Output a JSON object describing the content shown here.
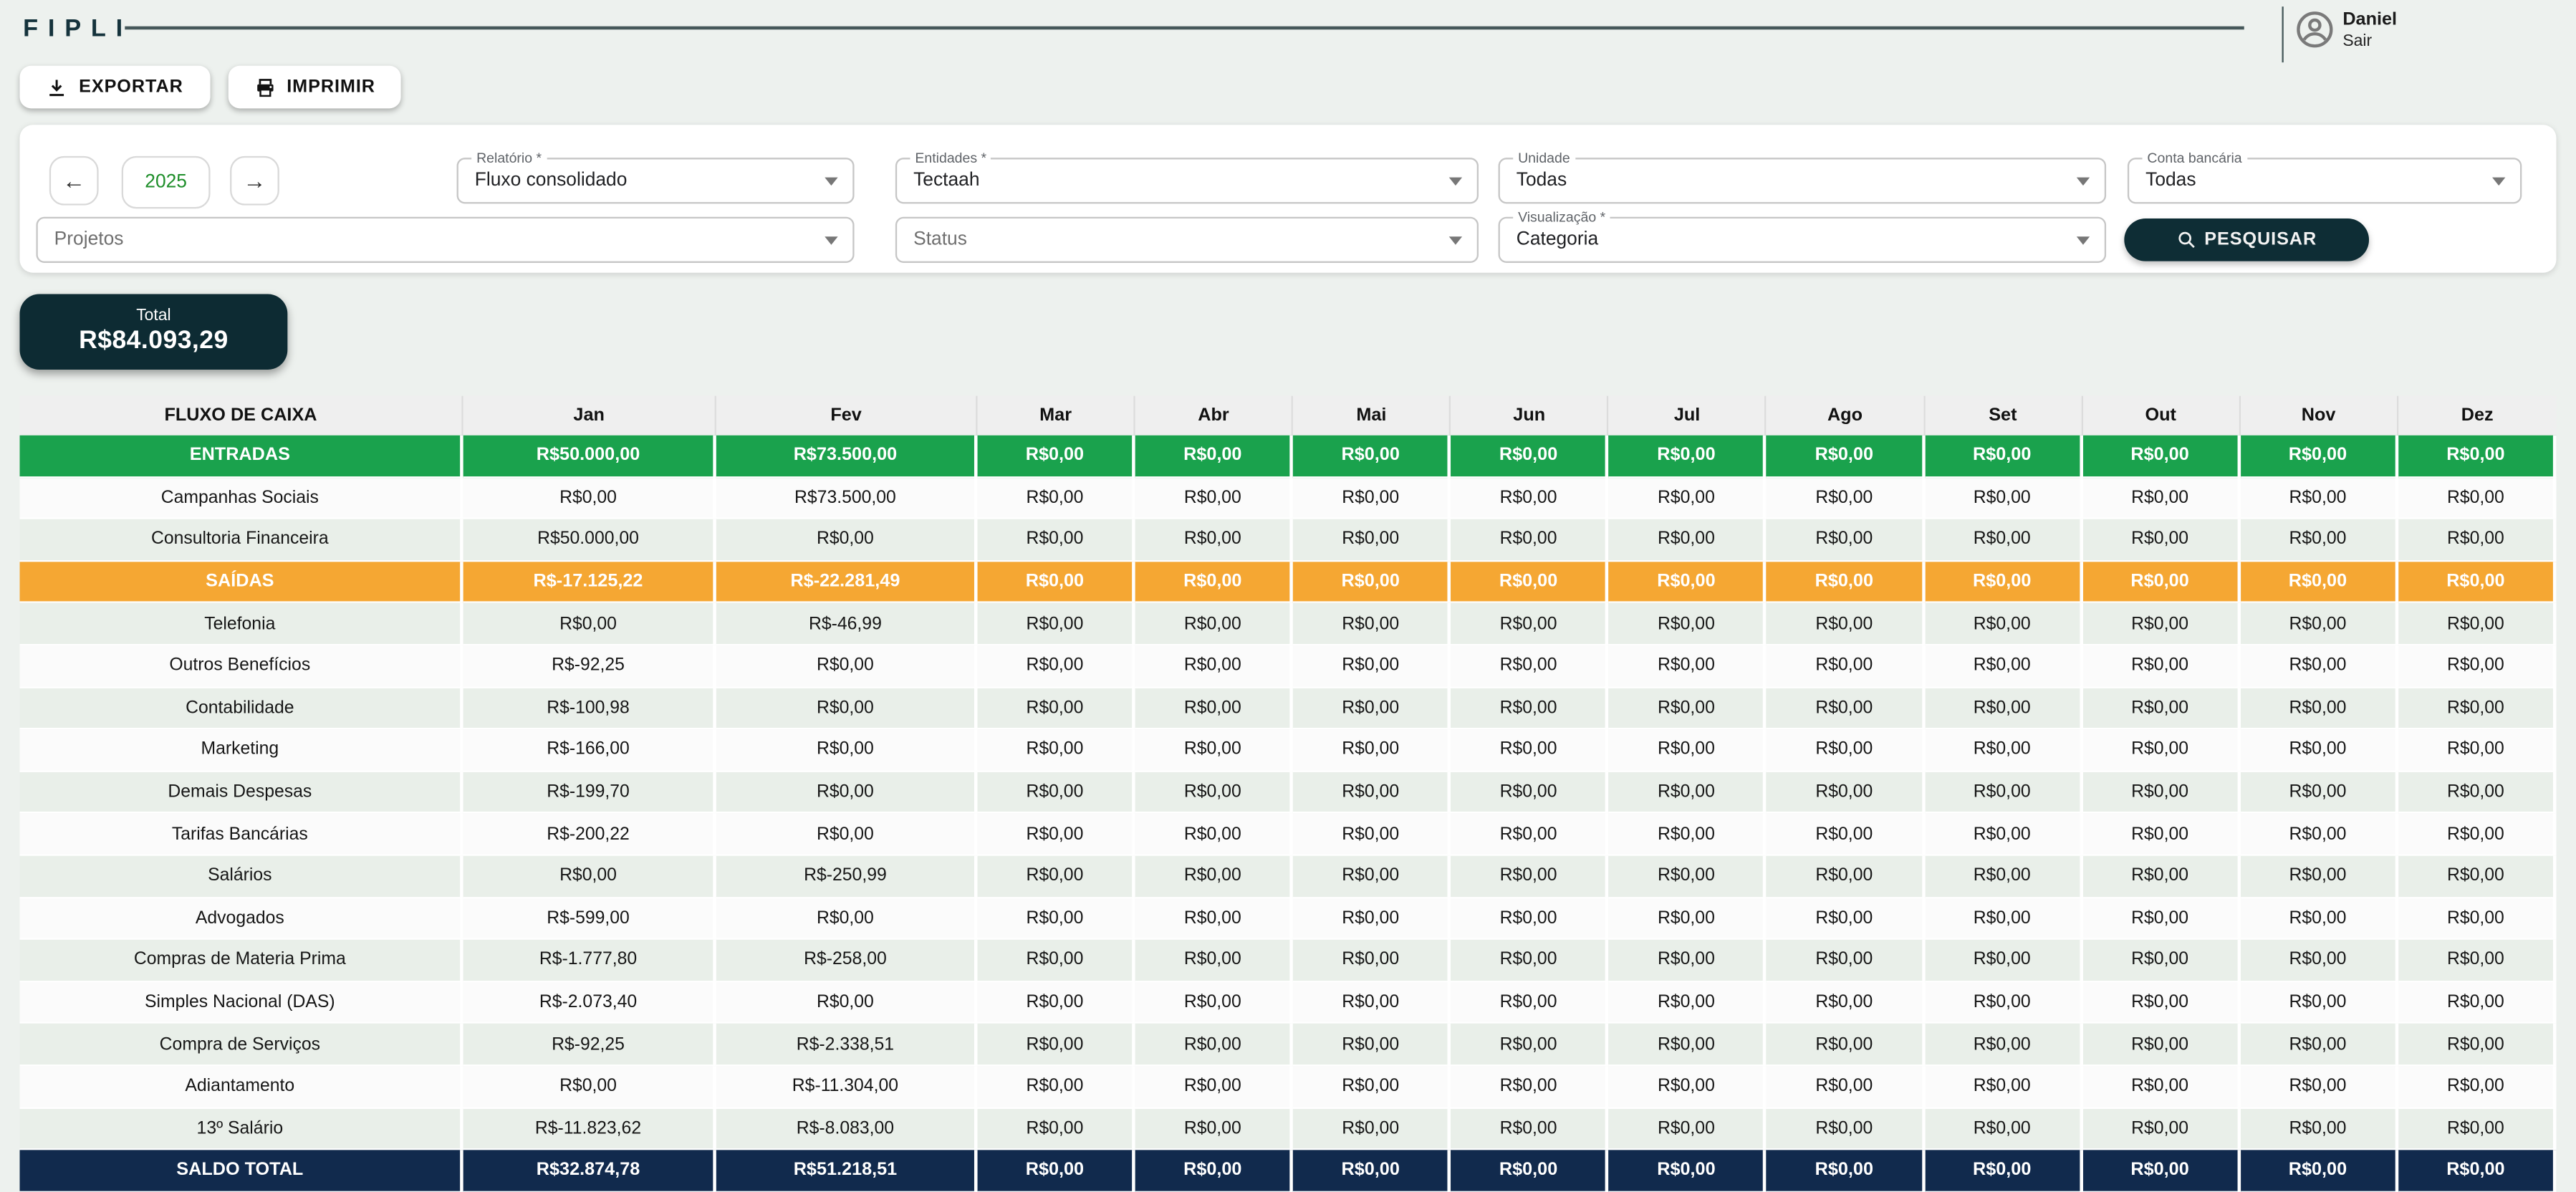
{
  "header": {
    "logo": "FIPLI",
    "user": {
      "name": "Daniel",
      "action": "Sair"
    }
  },
  "toolbar": {
    "export_label": "EXPORTAR",
    "print_label": "IMPRIMIR"
  },
  "filters": {
    "year": "2025",
    "prev_arrow": "←",
    "next_arrow": "→",
    "report": {
      "label": "Relatório *",
      "value": "Fluxo consolidado"
    },
    "entities": {
      "label": "Entidades *",
      "value": "Tectaah"
    },
    "unit": {
      "label": "Unidade",
      "value": "Todas"
    },
    "bank_account": {
      "label": "Conta bancária",
      "value": "Todas"
    },
    "projects": {
      "placeholder": "Projetos"
    },
    "status": {
      "placeholder": "Status"
    },
    "visualization": {
      "label": "Visualização *",
      "value": "Categoria"
    },
    "search_label": "PESQUISAR"
  },
  "total": {
    "label": "Total",
    "value": "R$84.093,29"
  },
  "table": {
    "columns": [
      "FLUXO DE CAIXA",
      "Jan",
      "Fev",
      "Mar",
      "Abr",
      "Mai",
      "Jun",
      "Jul",
      "Ago",
      "Set",
      "Out",
      "Nov",
      "Dez"
    ],
    "rows": [
      {
        "label": "ENTRADAS",
        "type": "entradas",
        "values": [
          "R$50.000,00",
          "R$73.500,00",
          "R$0,00",
          "R$0,00",
          "R$0,00",
          "R$0,00",
          "R$0,00",
          "R$0,00",
          "R$0,00",
          "R$0,00",
          "R$0,00",
          "R$0,00"
        ]
      },
      {
        "label": "Campanhas Sociais",
        "type": "category",
        "values": [
          "R$0,00",
          "R$73.500,00",
          "R$0,00",
          "R$0,00",
          "R$0,00",
          "R$0,00",
          "R$0,00",
          "R$0,00",
          "R$0,00",
          "R$0,00",
          "R$0,00",
          "R$0,00"
        ]
      },
      {
        "label": "Consultoria Financeira",
        "type": "category",
        "values": [
          "R$50.000,00",
          "R$0,00",
          "R$0,00",
          "R$0,00",
          "R$0,00",
          "R$0,00",
          "R$0,00",
          "R$0,00",
          "R$0,00",
          "R$0,00",
          "R$0,00",
          "R$0,00"
        ]
      },
      {
        "label": "SAÍDAS",
        "type": "saidas",
        "values": [
          "R$-17.125,22",
          "R$-22.281,49",
          "R$0,00",
          "R$0,00",
          "R$0,00",
          "R$0,00",
          "R$0,00",
          "R$0,00",
          "R$0,00",
          "R$0,00",
          "R$0,00",
          "R$0,00"
        ]
      },
      {
        "label": "Telefonia",
        "type": "category",
        "values": [
          "R$0,00",
          "R$-46,99",
          "R$0,00",
          "R$0,00",
          "R$0,00",
          "R$0,00",
          "R$0,00",
          "R$0,00",
          "R$0,00",
          "R$0,00",
          "R$0,00",
          "R$0,00"
        ]
      },
      {
        "label": "Outros Benefícios",
        "type": "category",
        "values": [
          "R$-92,25",
          "R$0,00",
          "R$0,00",
          "R$0,00",
          "R$0,00",
          "R$0,00",
          "R$0,00",
          "R$0,00",
          "R$0,00",
          "R$0,00",
          "R$0,00",
          "R$0,00"
        ]
      },
      {
        "label": "Contabilidade",
        "type": "category",
        "values": [
          "R$-100,98",
          "R$0,00",
          "R$0,00",
          "R$0,00",
          "R$0,00",
          "R$0,00",
          "R$0,00",
          "R$0,00",
          "R$0,00",
          "R$0,00",
          "R$0,00",
          "R$0,00"
        ]
      },
      {
        "label": "Marketing",
        "type": "category",
        "values": [
          "R$-166,00",
          "R$0,00",
          "R$0,00",
          "R$0,00",
          "R$0,00",
          "R$0,00",
          "R$0,00",
          "R$0,00",
          "R$0,00",
          "R$0,00",
          "R$0,00",
          "R$0,00"
        ]
      },
      {
        "label": "Demais Despesas",
        "type": "category",
        "values": [
          "R$-199,70",
          "R$0,00",
          "R$0,00",
          "R$0,00",
          "R$0,00",
          "R$0,00",
          "R$0,00",
          "R$0,00",
          "R$0,00",
          "R$0,00",
          "R$0,00",
          "R$0,00"
        ]
      },
      {
        "label": "Tarifas Bancárias",
        "type": "category",
        "values": [
          "R$-200,22",
          "R$0,00",
          "R$0,00",
          "R$0,00",
          "R$0,00",
          "R$0,00",
          "R$0,00",
          "R$0,00",
          "R$0,00",
          "R$0,00",
          "R$0,00",
          "R$0,00"
        ]
      },
      {
        "label": "Salários",
        "type": "category",
        "values": [
          "R$0,00",
          "R$-250,99",
          "R$0,00",
          "R$0,00",
          "R$0,00",
          "R$0,00",
          "R$0,00",
          "R$0,00",
          "R$0,00",
          "R$0,00",
          "R$0,00",
          "R$0,00"
        ]
      },
      {
        "label": "Advogados",
        "type": "category",
        "values": [
          "R$-599,00",
          "R$0,00",
          "R$0,00",
          "R$0,00",
          "R$0,00",
          "R$0,00",
          "R$0,00",
          "R$0,00",
          "R$0,00",
          "R$0,00",
          "R$0,00",
          "R$0,00"
        ]
      },
      {
        "label": "Compras de Materia Prima",
        "type": "category",
        "values": [
          "R$-1.777,80",
          "R$-258,00",
          "R$0,00",
          "R$0,00",
          "R$0,00",
          "R$0,00",
          "R$0,00",
          "R$0,00",
          "R$0,00",
          "R$0,00",
          "R$0,00",
          "R$0,00"
        ]
      },
      {
        "label": "Simples Nacional (DAS)",
        "type": "category",
        "values": [
          "R$-2.073,40",
          "R$0,00",
          "R$0,00",
          "R$0,00",
          "R$0,00",
          "R$0,00",
          "R$0,00",
          "R$0,00",
          "R$0,00",
          "R$0,00",
          "R$0,00",
          "R$0,00"
        ]
      },
      {
        "label": "Compra de Serviços",
        "type": "category",
        "values": [
          "R$-92,25",
          "R$-2.338,51",
          "R$0,00",
          "R$0,00",
          "R$0,00",
          "R$0,00",
          "R$0,00",
          "R$0,00",
          "R$0,00",
          "R$0,00",
          "R$0,00",
          "R$0,00"
        ]
      },
      {
        "label": "Adiantamento",
        "type": "category",
        "values": [
          "R$0,00",
          "R$-11.304,00",
          "R$0,00",
          "R$0,00",
          "R$0,00",
          "R$0,00",
          "R$0,00",
          "R$0,00",
          "R$0,00",
          "R$0,00",
          "R$0,00",
          "R$0,00"
        ]
      },
      {
        "label": "13º Salário",
        "type": "category",
        "values": [
          "R$-11.823,62",
          "R$-8.083,00",
          "R$0,00",
          "R$0,00",
          "R$0,00",
          "R$0,00",
          "R$0,00",
          "R$0,00",
          "R$0,00",
          "R$0,00",
          "R$0,00",
          "R$0,00"
        ]
      },
      {
        "label": "SALDO TOTAL",
        "type": "total",
        "values": [
          "R$32.874,78",
          "R$51.218,51",
          "R$0,00",
          "R$0,00",
          "R$0,00",
          "R$0,00",
          "R$0,00",
          "R$0,00",
          "R$0,00",
          "R$0,00",
          "R$0,00",
          "R$0,00"
        ]
      }
    ]
  },
  "colors": {
    "entradas_green": "#1aa24d",
    "saidas_orange": "#f5a733",
    "saldo_navy": "#112a4d",
    "dark_teal": "#0e2d35",
    "year_green": "#1e8e2a",
    "page_bg": "#edf1ee",
    "stripe": "#e9efe9"
  },
  "icons": {
    "export": "download-icon",
    "print": "printer-icon",
    "search": "search-icon",
    "user": "user-circle-icon",
    "prev": "arrow-left-icon",
    "next": "arrow-right-icon",
    "dropdown": "caret-down-icon"
  }
}
